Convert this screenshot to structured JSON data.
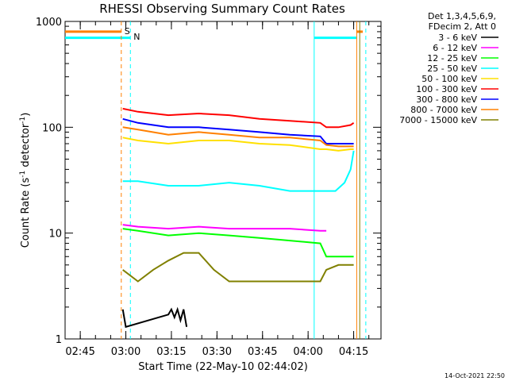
{
  "chart_data": {
    "type": "line",
    "title": "RHESSI Observing Summary Count Rates",
    "xlabel": "Start Time (22-May-10 02:44:02)",
    "ylabel_main": "Count Rate (s",
    "ylabel_sup1": "-1",
    "ylabel_mid": " detector",
    "ylabel_sup2": "-1",
    "ylabel_end": ")",
    "yscale": "log",
    "ylim": [
      1,
      1000
    ],
    "xlim_min": [
      -4,
      100
    ],
    "x_tick_labels": [
      "02:45",
      "03:00",
      "03:15",
      "03:30",
      "03:45",
      "04:00",
      "04:15"
    ],
    "x_tick_minutes": [
      1,
      16,
      31,
      46,
      61,
      76,
      91
    ],
    "y_tick_labels": [
      "1",
      "10",
      "100",
      "1000"
    ],
    "y_tick_values": [
      1,
      10,
      100,
      1000
    ],
    "legend_header": [
      "Det 1,3,4,5,6,9,",
      "FDecim 2, Att 0"
    ],
    "footer_date": "14-Oct-2021 22:50",
    "flag_markers": [
      {
        "label": "S",
        "x": 14.5,
        "color": "#ff8000"
      },
      {
        "label": "N",
        "x": 17.5,
        "color": "#00e0ff"
      }
    ],
    "series": [
      {
        "name": "3 - 6 keV",
        "color": "#000000",
        "x": [
          15,
          16,
          30,
          31,
          32,
          33,
          34,
          35,
          36
        ],
        "values": [
          1.9,
          1.3,
          1.7,
          1.9,
          1.6,
          1.9,
          1.5,
          1.9,
          1.3
        ]
      },
      {
        "name": "6 - 12 keV",
        "color": "#ff00ff",
        "x": [
          15,
          20,
          30,
          40,
          50,
          60,
          70,
          80,
          82
        ],
        "values": [
          12,
          11.5,
          11,
          11.5,
          11,
          11,
          11,
          10.5,
          10.5
        ]
      },
      {
        "name": "12 - 25 keV",
        "color": "#00ff00",
        "x": [
          15,
          20,
          30,
          40,
          50,
          60,
          70,
          80,
          82,
          86,
          90,
          91
        ],
        "values": [
          11,
          10.5,
          9.5,
          10,
          9.5,
          9,
          8.5,
          8,
          6,
          6,
          6,
          6
        ]
      },
      {
        "name": "25 - 50 keV",
        "color": "#00ffff",
        "x": [
          15,
          20,
          30,
          40,
          50,
          60,
          70,
          80,
          85,
          88,
          90,
          91
        ],
        "values": [
          31,
          31,
          28,
          28,
          30,
          28,
          25,
          25,
          25,
          30,
          40,
          60
        ]
      },
      {
        "name": "50 - 100 keV",
        "color": "#ffe000",
        "x": [
          15,
          20,
          30,
          40,
          50,
          60,
          70,
          80,
          82,
          86,
          90,
          91
        ],
        "values": [
          80,
          75,
          70,
          75,
          75,
          70,
          68,
          62,
          62,
          60,
          62,
          62
        ]
      },
      {
        "name": "100 - 300 keV",
        "color": "#ff0000",
        "x": [
          15,
          20,
          30,
          40,
          50,
          60,
          70,
          80,
          82,
          86,
          90,
          91
        ],
        "values": [
          150,
          140,
          130,
          135,
          130,
          120,
          115,
          110,
          100,
          100,
          105,
          110
        ]
      },
      {
        "name": "300 - 800 keV",
        "color": "#0000ff",
        "x": [
          15,
          20,
          30,
          40,
          50,
          60,
          70,
          80,
          82,
          86,
          90,
          91
        ],
        "values": [
          120,
          110,
          100,
          100,
          95,
          90,
          85,
          82,
          70,
          70,
          70,
          70
        ]
      },
      {
        "name": "800 - 7000 keV",
        "color": "#ff8000",
        "x": [
          15,
          20,
          30,
          40,
          50,
          60,
          70,
          80,
          82,
          86,
          90,
          91
        ],
        "values": [
          100,
          95,
          85,
          90,
          85,
          80,
          80,
          75,
          68,
          66,
          66,
          66
        ]
      },
      {
        "name": "7000 - 15000 keV",
        "color": "#808000",
        "x": [
          15,
          20,
          25,
          30,
          35,
          40,
          45,
          50,
          55,
          60,
          70,
          80,
          82,
          86,
          90,
          91
        ],
        "values": [
          4.5,
          3.5,
          4.5,
          5.5,
          6.5,
          6.5,
          4.5,
          3.5,
          3.5,
          3.5,
          3.5,
          3.5,
          4.5,
          5,
          5,
          5
        ]
      }
    ],
    "flag_lines": [
      {
        "color": "#00ffff",
        "level": 700,
        "x_start": -4,
        "x_end": 17.5
      },
      {
        "color": "#ff8000",
        "level": 800,
        "x_start": -4,
        "x_end": 14.5
      },
      {
        "color": "#00ffff",
        "level": 700,
        "x_start": 78,
        "x_end": 92
      },
      {
        "color": "#ff8000",
        "level": 800,
        "x_start": 92,
        "x_end": 94
      }
    ],
    "vlines": [
      {
        "x": 14.5,
        "color": "#ff8000",
        "style": "dashed"
      },
      {
        "x": 17.5,
        "color": "#00ffff",
        "style": "dashed"
      },
      {
        "x": 78,
        "color": "#00ffff",
        "style": "solid"
      },
      {
        "x": 92,
        "color": "#ff8000",
        "style": "solid"
      },
      {
        "x": 93,
        "color": "#808000",
        "style": "solid"
      },
      {
        "x": 95,
        "color": "#00ffff",
        "style": "dashed"
      }
    ]
  }
}
